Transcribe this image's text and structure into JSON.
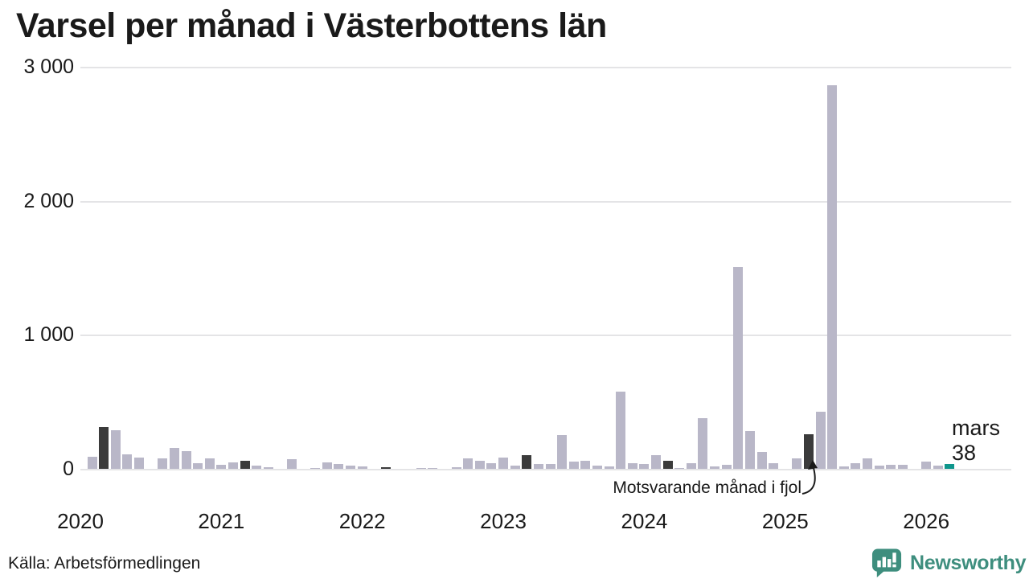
{
  "title": "Varsel per månad i Västerbottens län",
  "source": "Källa: Arbetsförmedlingen",
  "branding": {
    "name": "Newsworthy",
    "icon": "newsworthy-speech-bubble-chart-icon",
    "color": "#3e8e7e"
  },
  "annotation": {
    "text": "Motsvarande månad i fjol"
  },
  "current_label": {
    "line1": "mars",
    "line2": "38"
  },
  "colors": {
    "bar_default": "#b9b7c8",
    "bar_highlight": "#3b3b3b",
    "bar_current": "#0e968c",
    "gridline": "#e4e4e6",
    "text": "#1a1a1a"
  },
  "chart_data": {
    "type": "bar",
    "title": "Varsel per månad i Västerbottens län",
    "xlabel": "",
    "ylabel": "",
    "ylim": [
      0,
      3000
    ],
    "grid": "horizontal",
    "legend": "none",
    "highlight_meaning": "Dark bars = same month (mars) in earlier years; teal bar = current month",
    "yticks": [
      {
        "value": 0,
        "label": "0"
      },
      {
        "value": 1000,
        "label": "1 000"
      },
      {
        "value": 2000,
        "label": "2 000"
      },
      {
        "value": 3000,
        "label": "3 000"
      }
    ],
    "xticks": [
      {
        "label": "2020",
        "month_index": 0
      },
      {
        "label": "2021",
        "month_index": 12
      },
      {
        "label": "2022",
        "month_index": 24
      },
      {
        "label": "2023",
        "month_index": 36
      },
      {
        "label": "2024",
        "month_index": 48
      },
      {
        "label": "2025",
        "month_index": 60
      },
      {
        "label": "2026",
        "month_index": 72
      }
    ],
    "months": [
      {
        "m": "2020-01",
        "v": 0
      },
      {
        "m": "2020-02",
        "v": 94
      },
      {
        "m": "2020-03",
        "v": 314,
        "role": "highlight"
      },
      {
        "m": "2020-04",
        "v": 294
      },
      {
        "m": "2020-05",
        "v": 114
      },
      {
        "m": "2020-06",
        "v": 86
      },
      {
        "m": "2020-07",
        "v": 0
      },
      {
        "m": "2020-08",
        "v": 80
      },
      {
        "m": "2020-09",
        "v": 160
      },
      {
        "m": "2020-10",
        "v": 134
      },
      {
        "m": "2020-11",
        "v": 46
      },
      {
        "m": "2020-12",
        "v": 80
      },
      {
        "m": "2021-01",
        "v": 34
      },
      {
        "m": "2021-02",
        "v": 50
      },
      {
        "m": "2021-03",
        "v": 64,
        "role": "highlight"
      },
      {
        "m": "2021-04",
        "v": 30
      },
      {
        "m": "2021-05",
        "v": 14
      },
      {
        "m": "2021-06",
        "v": 0
      },
      {
        "m": "2021-07",
        "v": 78
      },
      {
        "m": "2021-08",
        "v": 0
      },
      {
        "m": "2021-09",
        "v": 10
      },
      {
        "m": "2021-10",
        "v": 50
      },
      {
        "m": "2021-11",
        "v": 42
      },
      {
        "m": "2021-12",
        "v": 26
      },
      {
        "m": "2022-01",
        "v": 22
      },
      {
        "m": "2022-02",
        "v": 0
      },
      {
        "m": "2022-03",
        "v": 16,
        "role": "highlight"
      },
      {
        "m": "2022-04",
        "v": 0
      },
      {
        "m": "2022-05",
        "v": 0
      },
      {
        "m": "2022-06",
        "v": 12
      },
      {
        "m": "2022-07",
        "v": 12
      },
      {
        "m": "2022-08",
        "v": 0
      },
      {
        "m": "2022-09",
        "v": 16
      },
      {
        "m": "2022-10",
        "v": 80
      },
      {
        "m": "2022-11",
        "v": 66
      },
      {
        "m": "2022-12",
        "v": 44
      },
      {
        "m": "2023-01",
        "v": 90
      },
      {
        "m": "2023-02",
        "v": 30
      },
      {
        "m": "2023-03",
        "v": 106,
        "role": "highlight"
      },
      {
        "m": "2023-04",
        "v": 40
      },
      {
        "m": "2023-05",
        "v": 38
      },
      {
        "m": "2023-06",
        "v": 256
      },
      {
        "m": "2023-07",
        "v": 60
      },
      {
        "m": "2023-08",
        "v": 64
      },
      {
        "m": "2023-09",
        "v": 30
      },
      {
        "m": "2023-10",
        "v": 20
      },
      {
        "m": "2023-11",
        "v": 580
      },
      {
        "m": "2023-12",
        "v": 44
      },
      {
        "m": "2024-01",
        "v": 38
      },
      {
        "m": "2024-02",
        "v": 104
      },
      {
        "m": "2024-03",
        "v": 64,
        "role": "highlight"
      },
      {
        "m": "2024-04",
        "v": 10
      },
      {
        "m": "2024-05",
        "v": 44
      },
      {
        "m": "2024-06",
        "v": 380
      },
      {
        "m": "2024-07",
        "v": 20
      },
      {
        "m": "2024-08",
        "v": 36
      },
      {
        "m": "2024-09",
        "v": 1512
      },
      {
        "m": "2024-10",
        "v": 286
      },
      {
        "m": "2024-11",
        "v": 130
      },
      {
        "m": "2024-12",
        "v": 46
      },
      {
        "m": "2025-01",
        "v": 0
      },
      {
        "m": "2025-02",
        "v": 84
      },
      {
        "m": "2025-03",
        "v": 264,
        "role": "highlight"
      },
      {
        "m": "2025-04",
        "v": 430
      },
      {
        "m": "2025-05",
        "v": 2870
      },
      {
        "m": "2025-06",
        "v": 20
      },
      {
        "m": "2025-07",
        "v": 44
      },
      {
        "m": "2025-08",
        "v": 80
      },
      {
        "m": "2025-09",
        "v": 26
      },
      {
        "m": "2025-10",
        "v": 34
      },
      {
        "m": "2025-11",
        "v": 34
      },
      {
        "m": "2025-12",
        "v": 0
      },
      {
        "m": "2026-01",
        "v": 56
      },
      {
        "m": "2026-02",
        "v": 30
      },
      {
        "m": "2026-03",
        "v": 38,
        "role": "current"
      }
    ]
  }
}
